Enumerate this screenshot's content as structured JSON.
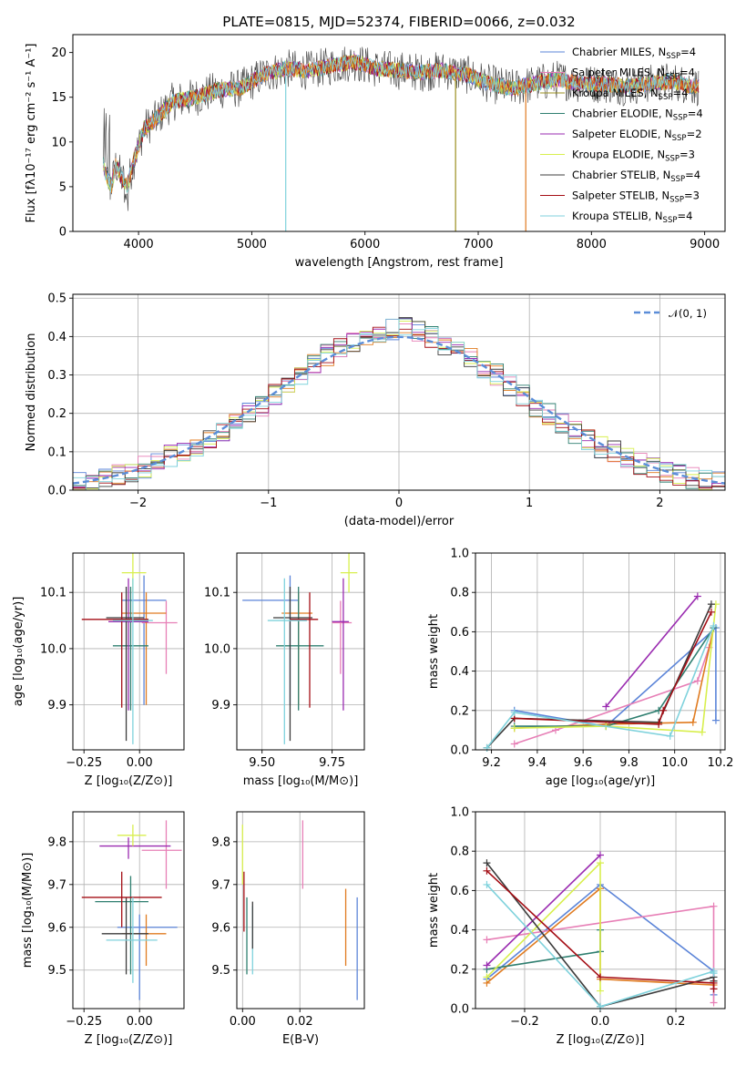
{
  "colors": {
    "chab_miles": "#5b84d8",
    "salp_miles": "#e77fb6",
    "krou_miles": "#9a8f1e",
    "chab_elodie": "#2f7f70",
    "salp_elodie": "#9a2bb0",
    "krou_elodie": "#d8ef4e",
    "chab_stelib": "#3c3c3c",
    "salp_stelib": "#a40d14",
    "krou_stelib": "#7fd2dc",
    "miles_orange": "#e07b20",
    "gauss": "#5b8dd8"
  },
  "chart_data": [
    {
      "id": "spectrum",
      "type": "line",
      "title": "PLATE=0815, MJD=52374, FIBERID=0066, z=0.032",
      "xlabel": "wavelength [Angstrom, rest frame]",
      "ylabel": "Flux [fλ10⁻¹⁷ erg cm⁻² s⁻¹ A⁻¹]",
      "xlim": [
        3420,
        9180
      ],
      "ylim": [
        0,
        22
      ],
      "xticks": [
        4000,
        5000,
        6000,
        7000,
        8000,
        9000
      ],
      "yticks": [
        0,
        5,
        10,
        15,
        20
      ],
      "grid": false,
      "legend_position": "top-right",
      "legend": [
        {
          "label": "Chabrier MILES, N",
          "sub": "SSP",
          "tail": "=4",
          "color_key": "chab_miles"
        },
        {
          "label": "Salpeter MILES, N",
          "sub": "SSP",
          "tail": "=4",
          "color_key": "salp_miles"
        },
        {
          "label": "Kroupa MILES, N",
          "sub": "SSP",
          "tail": "=4",
          "color_key": "krou_miles"
        },
        {
          "label": "Chabrier ELODIE, N",
          "sub": "SSP",
          "tail": "=4",
          "color_key": "chab_elodie"
        },
        {
          "label": "Salpeter ELODIE, N",
          "sub": "SSP",
          "tail": "=2",
          "color_key": "salp_elodie"
        },
        {
          "label": "Kroupa ELODIE, N",
          "sub": "SSP",
          "tail": "=3",
          "color_key": "krou_elodie"
        },
        {
          "label": "Chabrier STELIB, N",
          "sub": "SSP",
          "tail": "=4",
          "color_key": "chab_stelib"
        },
        {
          "label": "Salpeter STELIB, N",
          "sub": "SSP",
          "tail": "=3",
          "color_key": "salp_stelib"
        },
        {
          "label": "Kroupa STELIB, N",
          "sub": "SSP",
          "tail": "=4",
          "color_key": "krou_stelib"
        }
      ],
      "data_envelope": {
        "x": [
          3690,
          3720,
          3760,
          3800,
          3850,
          3900,
          3960,
          4050,
          4150,
          4300,
          4500,
          4700,
          4900,
          5100,
          5300,
          5500,
          5700,
          5900,
          6100,
          6300,
          6500,
          6700,
          6900,
          7100,
          7300,
          7500,
          7700,
          7900,
          8100,
          8300,
          8500,
          8700,
          8900
        ],
        "y": [
          7.5,
          6.0,
          5.0,
          7.5,
          6.0,
          5.0,
          8.0,
          11.5,
          12.5,
          14.5,
          15.0,
          15.8,
          16.0,
          17.5,
          18.2,
          18.0,
          18.5,
          19.0,
          18.2,
          18.0,
          17.8,
          18.0,
          17.5,
          16.5,
          16.0,
          16.5,
          17.0,
          16.5,
          16.5,
          16.2,
          16.5,
          16.8,
          16.2
        ]
      }
    },
    {
      "id": "residuals",
      "type": "bar",
      "xlabel": "(data-model)/error",
      "ylabel": "Normed distribution",
      "xlim": [
        -2.5,
        2.5
      ],
      "ylim": [
        0,
        0.51
      ],
      "xticks": [
        -2,
        -1,
        0,
        1,
        2
      ],
      "yticks": [
        0.0,
        0.1,
        0.2,
        0.3,
        0.4,
        0.5
      ],
      "grid": true,
      "legend_position": "top-right",
      "legend_label": "𝒩(0, 1)",
      "bin_width": 0.1,
      "approx_histogram_heights": [
        0.02,
        0.02,
        0.03,
        0.04,
        0.05,
        0.06,
        0.07,
        0.09,
        0.1,
        0.11,
        0.13,
        0.15,
        0.17,
        0.2,
        0.22,
        0.25,
        0.28,
        0.3,
        0.33,
        0.35,
        0.37,
        0.38,
        0.4,
        0.41,
        0.42,
        0.42,
        0.41,
        0.4,
        0.38,
        0.37,
        0.35,
        0.32,
        0.3,
        0.27,
        0.25,
        0.22,
        0.2,
        0.17,
        0.15,
        0.13,
        0.11,
        0.1,
        0.08,
        0.07,
        0.06,
        0.05,
        0.04,
        0.03,
        0.03,
        0.02
      ]
    },
    {
      "id": "z_age",
      "type": "scatter",
      "xlabel": "Z [log₁₀(Z/Z⊙)]",
      "ylabel": "age  [log₁₀(age/yr)]",
      "xlim": [
        -0.3,
        0.2
      ],
      "ylim": [
        9.82,
        10.17
      ],
      "xticks": [
        -0.25,
        0.0
      ],
      "xticklabels": [
        "−0.25",
        "0.00"
      ],
      "yticks": [
        9.9,
        10.0,
        10.1
      ],
      "grid": true,
      "points": [
        {
          "c": "chab_miles",
          "x": 0.02,
          "y": 10.086,
          "xe": [
            -0.08,
            0.12
          ],
          "ye": [
            9.9,
            10.13
          ]
        },
        {
          "c": "salp_miles",
          "x": 0.12,
          "y": 10.046,
          "xe": [
            0.01,
            0.17
          ],
          "ye": [
            9.955,
            10.085
          ]
        },
        {
          "c": "miles_orange",
          "x": 0.03,
          "y": 10.063,
          "xe": [
            -0.08,
            0.12
          ],
          "ye": [
            9.9,
            10.1
          ]
        },
        {
          "c": "chab_elodie",
          "x": -0.04,
          "y": 10.005,
          "xe": [
            -0.12,
            0.04
          ],
          "ye": [
            9.89,
            10.11
          ]
        },
        {
          "c": "salp_elodie",
          "x": -0.05,
          "y": 10.048,
          "xe": [
            -0.14,
            0.04
          ],
          "ye": [
            9.89,
            10.125
          ]
        },
        {
          "c": "krou_elodie",
          "x": -0.03,
          "y": 10.135,
          "xe": [
            -0.08,
            0.03
          ],
          "ye": [
            10.1,
            10.175
          ]
        },
        {
          "c": "chab_stelib",
          "x": -0.06,
          "y": 10.055,
          "xe": [
            -0.15,
            0.02
          ],
          "ye": [
            9.836,
            10.11
          ]
        },
        {
          "c": "salp_stelib",
          "x": -0.08,
          "y": 10.052,
          "xe": [
            -0.26,
            0.04
          ],
          "ye": [
            9.895,
            10.1
          ]
        },
        {
          "c": "krou_stelib",
          "x": -0.03,
          "y": 10.05,
          "xe": [
            -0.12,
            0.06
          ],
          "ye": [
            9.83,
            10.125
          ]
        }
      ]
    },
    {
      "id": "mass_age",
      "type": "scatter",
      "xlabel": "mass [log₁₀(M/M⊙)]",
      "ylabel": "",
      "xlim": [
        9.41,
        9.865
      ],
      "ylim": [
        9.82,
        10.17
      ],
      "xticks": [
        9.5,
        9.75
      ],
      "xticklabels": [
        "9.50",
        "9.75"
      ],
      "yticks": [
        9.9,
        10.0,
        10.1
      ],
      "grid": true,
      "points": [
        {
          "c": "chab_miles",
          "x": 9.6,
          "y": 10.086,
          "xe": [
            9.43,
            9.63
          ],
          "ye": [
            9.9,
            10.13
          ]
        },
        {
          "c": "salp_miles",
          "x": 9.78,
          "y": 10.046,
          "xe": [
            9.75,
            9.82
          ],
          "ye": [
            9.955,
            10.085
          ]
        },
        {
          "c": "miles_orange",
          "x": 9.63,
          "y": 10.063,
          "xe": [
            9.57,
            9.68
          ],
          "ye": [
            9.9,
            10.1
          ]
        },
        {
          "c": "chab_elodie",
          "x": 9.63,
          "y": 10.005,
          "xe": [
            9.55,
            9.72
          ],
          "ye": [
            9.89,
            10.11
          ]
        },
        {
          "c": "salp_elodie",
          "x": 9.79,
          "y": 10.048,
          "xe": [
            9.75,
            9.81
          ],
          "ye": [
            9.89,
            10.125
          ]
        },
        {
          "c": "krou_elodie",
          "x": 9.81,
          "y": 10.135,
          "xe": [
            9.78,
            9.84
          ],
          "ye": [
            10.1,
            10.175
          ]
        },
        {
          "c": "chab_stelib",
          "x": 9.6,
          "y": 10.055,
          "xe": [
            9.54,
            9.68
          ],
          "ye": [
            9.836,
            10.11
          ]
        },
        {
          "c": "salp_stelib",
          "x": 9.67,
          "y": 10.052,
          "xe": [
            9.6,
            9.7
          ],
          "ye": [
            9.895,
            10.1
          ]
        },
        {
          "c": "krou_stelib",
          "x": 9.58,
          "y": 10.05,
          "xe": [
            9.52,
            9.66
          ],
          "ye": [
            9.83,
            10.125
          ]
        }
      ]
    },
    {
      "id": "age_weight",
      "type": "line",
      "xlabel": "age  [log₁₀(age/yr)]",
      "ylabel": "mass weight",
      "xlim": [
        9.13,
        10.22
      ],
      "ylim": [
        0,
        1
      ],
      "xticks": [
        9.2,
        9.4,
        9.6,
        9.8,
        10.0,
        10.2
      ],
      "xticklabels": [
        "9.2",
        "9.4",
        "9.6",
        "9.8",
        "10.0",
        "10.2"
      ],
      "yticks": [
        0.0,
        0.2,
        0.4,
        0.6,
        0.8,
        1.0
      ],
      "grid": true,
      "series": [
        {
          "c": "chab_miles",
          "x": [
            9.3,
            9.7,
            10.18,
            10.18
          ],
          "y": [
            0.2,
            0.12,
            0.62,
            0.15
          ]
        },
        {
          "c": "salp_miles",
          "x": [
            9.3,
            9.48,
            10.1,
            10.15
          ],
          "y": [
            0.03,
            0.1,
            0.35,
            0.52
          ]
        },
        {
          "c": "miles_orange",
          "x": [
            9.3,
            9.7,
            10.08,
            10.17
          ],
          "y": [
            0.11,
            0.13,
            0.14,
            0.62
          ]
        },
        {
          "c": "chab_elodie",
          "x": [
            9.3,
            9.7,
            9.93,
            10.17
          ],
          "y": [
            0.12,
            0.12,
            0.2,
            0.62
          ]
        },
        {
          "c": "salp_elodie",
          "x": [
            9.7,
            10.1
          ],
          "y": [
            0.22,
            0.78
          ]
        },
        {
          "c": "krou_elodie",
          "x": [
            9.3,
            9.7,
            10.12,
            10.18
          ],
          "y": [
            0.11,
            0.12,
            0.09,
            0.74
          ]
        },
        {
          "c": "chab_stelib",
          "x": [
            9.18,
            9.3,
            9.93,
            10.16
          ],
          "y": [
            0.01,
            0.16,
            0.14,
            0.74
          ]
        },
        {
          "c": "salp_stelib",
          "x": [
            9.3,
            9.93,
            9.95,
            10.16
          ],
          "y": [
            0.16,
            0.13,
            0.2,
            0.7
          ]
        },
        {
          "c": "krou_stelib",
          "x": [
            9.18,
            9.3,
            9.98,
            10.17
          ],
          "y": [
            0.01,
            0.19,
            0.07,
            0.63
          ]
        }
      ]
    },
    {
      "id": "z_mass",
      "type": "scatter",
      "xlabel": "Z [log₁₀(Z/Z⊙)]",
      "ylabel": "mass [log₁₀(M/M⊙)]",
      "xlim": [
        -0.3,
        0.2
      ],
      "ylim": [
        9.41,
        9.87
      ],
      "xticks": [
        -0.25,
        0.0
      ],
      "xticklabels": [
        "−0.25",
        "0.00"
      ],
      "yticks": [
        9.5,
        9.6,
        9.7,
        9.8
      ],
      "grid": true,
      "points": [
        {
          "c": "chab_miles",
          "x": 0.0,
          "y": 9.6,
          "xe": [
            -0.1,
            0.17
          ],
          "ye": [
            9.43,
            9.63
          ]
        },
        {
          "c": "salp_miles",
          "x": 0.12,
          "y": 9.78,
          "xe": [
            0.01,
            0.19
          ],
          "ye": [
            9.69,
            9.85
          ]
        },
        {
          "c": "miles_orange",
          "x": 0.03,
          "y": 9.585,
          "xe": [
            -0.08,
            0.12
          ],
          "ye": [
            9.51,
            9.63
          ]
        },
        {
          "c": "chab_elodie",
          "x": -0.04,
          "y": 9.66,
          "xe": [
            -0.2,
            0.04
          ],
          "ye": [
            9.49,
            9.72
          ]
        },
        {
          "c": "salp_elodie",
          "x": -0.05,
          "y": 9.79,
          "xe": [
            -0.18,
            0.14
          ],
          "ye": [
            9.76,
            9.81
          ]
        },
        {
          "c": "krou_elodie",
          "x": -0.03,
          "y": 9.815,
          "xe": [
            -0.1,
            0.03
          ],
          "ye": [
            9.79,
            9.84
          ]
        },
        {
          "c": "chab_stelib",
          "x": -0.06,
          "y": 9.585,
          "xe": [
            -0.17,
            0.04
          ],
          "ye": [
            9.49,
            9.67
          ]
        },
        {
          "c": "salp_stelib",
          "x": -0.08,
          "y": 9.67,
          "xe": [
            -0.26,
            0.1
          ],
          "ye": [
            9.6,
            9.73
          ]
        },
        {
          "c": "krou_stelib",
          "x": -0.03,
          "y": 9.57,
          "xe": [
            -0.15,
            0.08
          ],
          "ye": [
            9.47,
            9.67
          ]
        }
      ]
    },
    {
      "id": "ebv_mass",
      "type": "scatter",
      "xlabel": "E(B-V)",
      "ylabel": "",
      "xlim": [
        -0.002,
        0.0425
      ],
      "ylim": [
        9.41,
        9.87
      ],
      "xticks": [
        0.0,
        0.02
      ],
      "xticklabels": [
        "0.00",
        "0.02"
      ],
      "yticks": [
        9.5,
        9.6,
        9.7,
        9.8
      ],
      "grid": true,
      "points": [
        {
          "c": "chab_miles",
          "x": 0.04,
          "y": 9.55,
          "ye": [
            9.43,
            9.67
          ]
        },
        {
          "c": "salp_miles",
          "x": 0.021,
          "y": 9.77,
          "ye": [
            9.69,
            9.85
          ]
        },
        {
          "c": "miles_orange",
          "x": 0.036,
          "y": 9.6,
          "ye": [
            9.51,
            9.69
          ]
        },
        {
          "c": "chab_elodie",
          "x": 0.0015,
          "y": 9.6,
          "ye": [
            9.49,
            9.67
          ]
        },
        {
          "c": "krou_elodie",
          "x": 0.0,
          "y": 9.78,
          "ye": [
            9.7,
            9.84
          ]
        },
        {
          "c": "salp_stelib",
          "x": 0.0005,
          "y": 9.68,
          "ye": [
            9.59,
            9.73
          ]
        },
        {
          "c": "krou_stelib",
          "x": 0.0035,
          "y": 9.55,
          "ye": [
            9.49,
            9.65
          ]
        },
        {
          "c": "chab_stelib",
          "x": 0.0035,
          "y": 9.6,
          "ye": [
            9.55,
            9.66
          ]
        }
      ]
    },
    {
      "id": "z_weight",
      "type": "line",
      "xlabel": "Z [log₁₀(Z/Z⊙)]",
      "ylabel": "mass weight",
      "xlim": [
        -0.33,
        0.33
      ],
      "ylim": [
        0,
        1
      ],
      "xticks": [
        -0.2,
        0.0,
        0.2
      ],
      "xticklabels": [
        "−0.2",
        "0.0",
        "0.2"
      ],
      "yticks": [
        0.0,
        0.2,
        0.4,
        0.6,
        0.8,
        1.0
      ],
      "grid": true,
      "series": [
        {
          "c": "chab_miles",
          "x": [
            -0.3,
            0.0,
            0.3,
            0.3
          ],
          "y": [
            0.15,
            0.63,
            0.19,
            0.07
          ]
        },
        {
          "c": "salp_miles",
          "x": [
            -0.3,
            0.3,
            0.3
          ],
          "y": [
            0.35,
            0.52,
            0.03
          ]
        },
        {
          "c": "miles_orange",
          "x": [
            -0.3,
            0.0,
            0.0,
            0.3
          ],
          "y": [
            0.13,
            0.61,
            0.15,
            0.12
          ]
        },
        {
          "c": "chab_elodie",
          "x": [
            -0.3,
            0.0,
            0.0
          ],
          "y": [
            0.2,
            0.29,
            0.4
          ]
        },
        {
          "c": "salp_elodie",
          "x": [
            -0.3,
            0.0
          ],
          "y": [
            0.22,
            0.78
          ]
        },
        {
          "c": "krou_elodie",
          "x": [
            -0.3,
            0.0,
            0.0
          ],
          "y": [
            0.16,
            0.74,
            0.09
          ]
        },
        {
          "c": "chab_stelib",
          "x": [
            -0.3,
            0.0,
            0.3,
            0.3
          ],
          "y": [
            0.74,
            0.01,
            0.16,
            0.14
          ]
        },
        {
          "c": "salp_stelib",
          "x": [
            -0.3,
            0.0,
            0.3,
            0.3
          ],
          "y": [
            0.7,
            0.16,
            0.13,
            0.1
          ]
        },
        {
          "c": "krou_stelib",
          "x": [
            -0.3,
            0.0,
            0.3,
            0.3
          ],
          "y": [
            0.63,
            0.01,
            0.19,
            0.18
          ]
        }
      ]
    }
  ]
}
